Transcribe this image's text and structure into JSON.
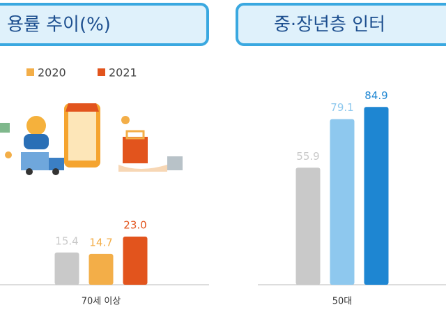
{
  "chart_data": [
    {
      "type": "bar",
      "title": "용률 추이(%)",
      "categories": [
        "70세 이상"
      ],
      "series": [
        {
          "color": "#c9c9c9",
          "values": [
            15.4
          ]
        },
        {
          "name": "2020",
          "color": "#f3ae48",
          "values": [
            14.7
          ]
        },
        {
          "name": "2021",
          "color": "#e2541d",
          "values": [
            23.0
          ],
          "value_labels": [
            "23.0"
          ]
        }
      ],
      "ylim": [
        0,
        100
      ]
    },
    {
      "type": "bar",
      "title": "중·장년층 인터",
      "categories": [
        "50대"
      ],
      "series": [
        {
          "color": "#c9c9c9",
          "values": [
            55.9
          ]
        },
        {
          "color": "#8ec8ee",
          "values": [
            79.1
          ]
        },
        {
          "color": "#1e86d2",
          "values": [
            84.9
          ]
        }
      ],
      "ylim": [
        0,
        100
      ]
    }
  ]
}
